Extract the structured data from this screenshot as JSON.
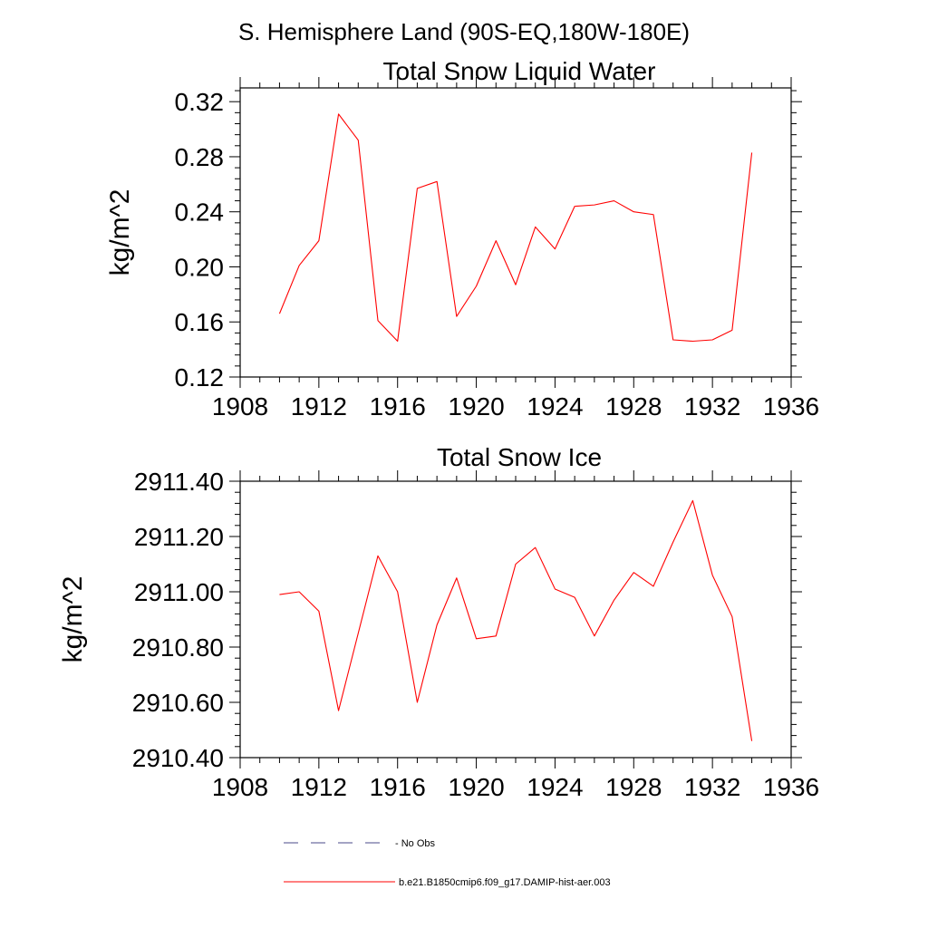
{
  "header": {
    "title": "S. Hemisphere Land (90S-EQ,180W-180E)"
  },
  "legend": {
    "items": [
      {
        "label": "No Obs",
        "color": "#4a4a8a",
        "style": "dashed"
      },
      {
        "label": "b.e21.B1850cmip6.f09_g17.DAMIP-hist-aer.003",
        "color": "#ff0000",
        "style": "solid"
      }
    ]
  },
  "chart_data": [
    {
      "type": "line",
      "title": "Total Snow Liquid Water",
      "xlabel": "",
      "ylabel": "kg/m^2",
      "xlim": [
        1908,
        1936
      ],
      "ylim": [
        0.12,
        0.33
      ],
      "xticks": [
        1908,
        1912,
        1916,
        1920,
        1924,
        1928,
        1932,
        1936
      ],
      "yticks": [
        0.12,
        0.16,
        0.2,
        0.24,
        0.28,
        0.32
      ],
      "ytick_labels": [
        "0.12",
        "0.16",
        "0.20",
        "0.24",
        "0.28",
        "0.32"
      ],
      "grid": false,
      "series": [
        {
          "name": "b.e21.B1850cmip6.f09_g17.DAMIP-hist-aer.003",
          "color": "#ff0000",
          "x": [
            1910,
            1911,
            1912,
            1913,
            1914,
            1915,
            1916,
            1917,
            1918,
            1919,
            1920,
            1921,
            1922,
            1923,
            1924,
            1925,
            1926,
            1927,
            1928,
            1929,
            1930,
            1931,
            1932,
            1933,
            1934
          ],
          "values": [
            0.166,
            0.201,
            0.219,
            0.311,
            0.292,
            0.161,
            0.146,
            0.257,
            0.262,
            0.164,
            0.186,
            0.219,
            0.187,
            0.229,
            0.213,
            0.244,
            0.245,
            0.248,
            0.24,
            0.238,
            0.147,
            0.146,
            0.147,
            0.154,
            0.283
          ]
        }
      ]
    },
    {
      "type": "line",
      "title": "Total Snow Ice",
      "xlabel": "",
      "ylabel": "kg/m^2",
      "xlim": [
        1908,
        1936
      ],
      "ylim": [
        2910.4,
        2911.4
      ],
      "xticks": [
        1908,
        1912,
        1916,
        1920,
        1924,
        1928,
        1932,
        1936
      ],
      "yticks": [
        2910.4,
        2910.6,
        2910.8,
        2911.0,
        2911.2,
        2911.4
      ],
      "ytick_labels": [
        "2910.40",
        "2910.60",
        "2910.80",
        "2911.00",
        "2911.20",
        "2911.40"
      ],
      "grid": false,
      "series": [
        {
          "name": "b.e21.B1850cmip6.f09_g17.DAMIP-hist-aer.003",
          "color": "#ff0000",
          "x": [
            1910,
            1911,
            1912,
            1913,
            1914,
            1915,
            1916,
            1917,
            1918,
            1919,
            1920,
            1921,
            1922,
            1923,
            1924,
            1925,
            1926,
            1927,
            1928,
            1929,
            1930,
            1931,
            1932,
            1933,
            1934
          ],
          "values": [
            2910.99,
            2911.0,
            2910.93,
            2910.57,
            2910.85,
            2911.13,
            2911.0,
            2910.6,
            2910.88,
            2911.05,
            2910.83,
            2910.84,
            2911.1,
            2911.16,
            2911.01,
            2910.98,
            2910.84,
            2910.97,
            2911.07,
            2911.02,
            2911.18,
            2911.33,
            2911.06,
            2910.91,
            2910.46
          ]
        }
      ]
    }
  ]
}
